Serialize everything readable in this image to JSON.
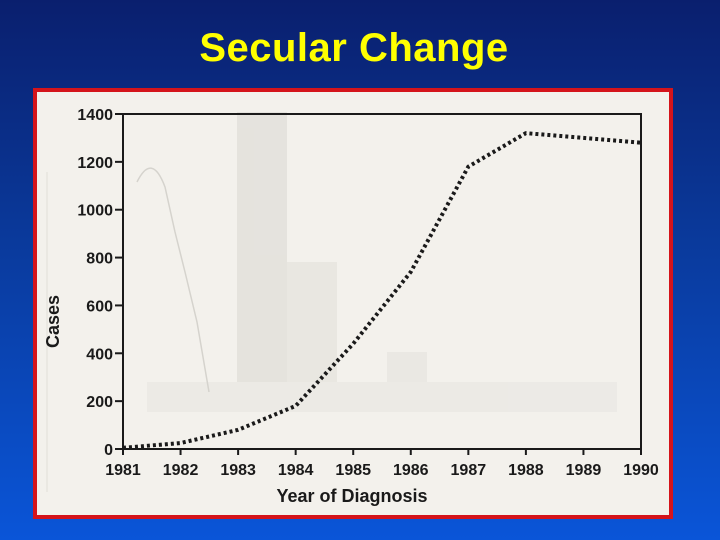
{
  "slide": {
    "title": "Secular Change",
    "title_color": "#ffff00",
    "frame_color": "#d4141b"
  },
  "chart_data": {
    "type": "line",
    "title": "",
    "xlabel": "Year of Diagnosis",
    "ylabel": "Cases",
    "x": [
      1981,
      1982,
      1983,
      1984,
      1985,
      1986,
      1987,
      1988,
      1989,
      1990
    ],
    "series": [
      {
        "values": [
          5,
          25,
          80,
          180,
          440,
          740,
          1180,
          1320,
          1300,
          1280
        ],
        "style": "dotted",
        "color": "#1a1a1a"
      }
    ],
    "xlim": [
      1981,
      1990
    ],
    "ylim": [
      0,
      1400
    ],
    "yticks": [
      0,
      200,
      400,
      600,
      800,
      1000,
      1200,
      1400
    ],
    "xticks": [
      1981,
      1982,
      1983,
      1984,
      1985,
      1986,
      1987,
      1988,
      1989,
      1990
    ],
    "grid": false
  }
}
